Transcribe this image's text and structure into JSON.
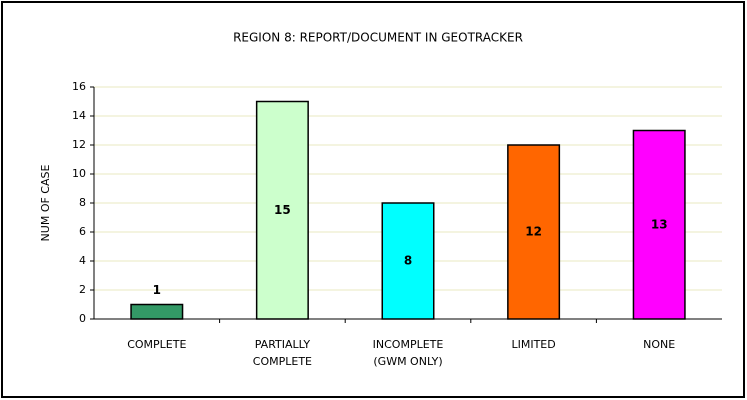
{
  "chart_data": {
    "type": "bar",
    "title": "REGION 8: REPORT/DOCUMENT IN GEOTRACKER",
    "ylabel": "NUM OF CASE",
    "categories": [
      "COMPLETE",
      "PARTIALLY\nCOMPLETE",
      "INCOMPLETE\n(GWM ONLY)",
      "LIMITED",
      "NONE"
    ],
    "values": [
      1,
      15,
      8,
      12,
      13
    ],
    "colors": [
      "#339966",
      "#ccffcc",
      "#00ffff",
      "#ff6600",
      "#ff00ff"
    ],
    "ylim": [
      0,
      16
    ],
    "yticks": [
      0,
      2,
      4,
      6,
      8,
      10,
      12,
      14,
      16
    ],
    "grid": true
  }
}
